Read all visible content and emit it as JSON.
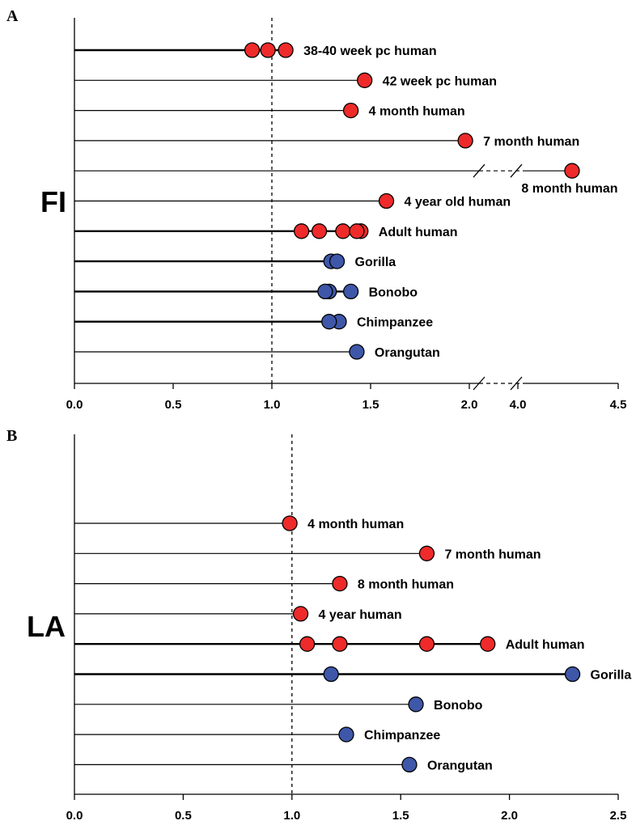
{
  "colors": {
    "human": "#ee2a2a",
    "ape": "#3e57a9",
    "line": "#000000"
  },
  "chart_data": [
    {
      "type": "scatter",
      "panel_label": "A",
      "measure": "FI",
      "xlim": [
        0.0,
        4.5
      ],
      "axis_break": [
        2.0,
        4.0
      ],
      "ticks": [
        0.0,
        0.5,
        1.0,
        1.5,
        2.0,
        4.0,
        4.5
      ],
      "tick_labels": [
        "0.0",
        "0.5",
        "1.0",
        "1.5",
        "2.0",
        "4.0",
        "4.5"
      ],
      "reference_line": 1.0,
      "rows": [
        {
          "label": "38-40 week pc human",
          "group": "human",
          "values": [
            0.9,
            0.98,
            1.07
          ]
        },
        {
          "label": "42 week pc human",
          "group": "human",
          "values": [
            1.47
          ]
        },
        {
          "label": "4 month human",
          "group": "human",
          "values": [
            1.4
          ]
        },
        {
          "label": "7 month human",
          "group": "human",
          "values": [
            1.98
          ]
        },
        {
          "label": "8 month human",
          "group": "human",
          "values": [
            4.27
          ],
          "label_below": true
        },
        {
          "label": "4 year old human",
          "group": "human",
          "values": [
            1.58
          ]
        },
        {
          "label": "Adult human",
          "group": "human",
          "values": [
            1.15,
            1.24,
            1.36,
            1.45,
            1.43
          ]
        },
        {
          "label": "Gorilla",
          "group": "ape",
          "values": [
            1.3,
            1.33
          ]
        },
        {
          "label": "Bonobo",
          "group": "ape",
          "values": [
            1.29,
            1.27,
            1.4
          ]
        },
        {
          "label": "Chimpanzee",
          "group": "ape",
          "values": [
            1.34,
            1.29
          ]
        },
        {
          "label": "Orangutan",
          "group": "ape",
          "values": [
            1.43
          ]
        }
      ]
    },
    {
      "type": "scatter",
      "panel_label": "B",
      "measure": "LA",
      "xlim": [
        0.0,
        2.5
      ],
      "ticks": [
        0.0,
        0.5,
        1.0,
        1.5,
        2.0,
        2.5
      ],
      "tick_labels": [
        "0.0",
        "0.5",
        "1.0",
        "1.5",
        "2.0",
        "2.5"
      ],
      "reference_line": 1.0,
      "rows": [
        {
          "label": "4 month human",
          "group": "human",
          "values": [
            0.99
          ]
        },
        {
          "label": "7 month human",
          "group": "human",
          "values": [
            1.62
          ]
        },
        {
          "label": "8 month human",
          "group": "human",
          "values": [
            1.22
          ]
        },
        {
          "label": "4 year human",
          "group": "human",
          "values": [
            1.04
          ]
        },
        {
          "label": "Adult human",
          "group": "human",
          "values": [
            1.07,
            1.22,
            1.62,
            1.9
          ]
        },
        {
          "label": "Gorilla",
          "group": "ape",
          "values": [
            1.18,
            2.29
          ]
        },
        {
          "label": "Bonobo",
          "group": "ape",
          "values": [
            1.57
          ]
        },
        {
          "label": "Chimpanzee",
          "group": "ape",
          "values": [
            1.25
          ]
        },
        {
          "label": "Orangutan",
          "group": "ape",
          "values": [
            1.54
          ]
        }
      ]
    }
  ]
}
